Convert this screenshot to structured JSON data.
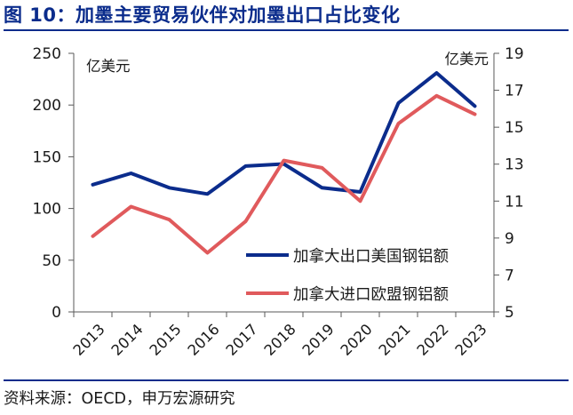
{
  "title": "图 10：加墨主要贸易伙伴对加墨出口占比变化",
  "source": "资料来源：OECD，申万宏源研究",
  "colors": {
    "title": "#0b2c8c",
    "series_us": "#0b2c8c",
    "series_eu": "#e05a5c"
  },
  "chart_data": {
    "type": "line",
    "title": "",
    "x": [
      "2013",
      "2014",
      "2015",
      "2016",
      "2017",
      "2018",
      "2019",
      "2020",
      "2021",
      "2022",
      "2023"
    ],
    "y_left": {
      "label": "亿美元",
      "min": 0,
      "max": 250,
      "ticks": [
        0,
        50,
        100,
        150,
        200,
        250
      ]
    },
    "y_right": {
      "label": "亿美元",
      "min": 5,
      "max": 19,
      "ticks": [
        5,
        7,
        9,
        11,
        13,
        15,
        17,
        19
      ]
    },
    "grid": false,
    "legend": "right-lower",
    "series": [
      {
        "name": "加拿大出口美国钢铝额",
        "axis": "left",
        "color": "#0b2c8c",
        "values": [
          123,
          134,
          120,
          114,
          141,
          143,
          120,
          116,
          202,
          231,
          199
        ]
      },
      {
        "name": "加拿大进口欧盟钢铝额",
        "axis": "right",
        "color": "#e05a5c",
        "values": [
          9.1,
          10.7,
          10.0,
          8.2,
          9.9,
          13.2,
          12.8,
          11.0,
          15.2,
          16.7,
          15.7
        ]
      }
    ]
  }
}
